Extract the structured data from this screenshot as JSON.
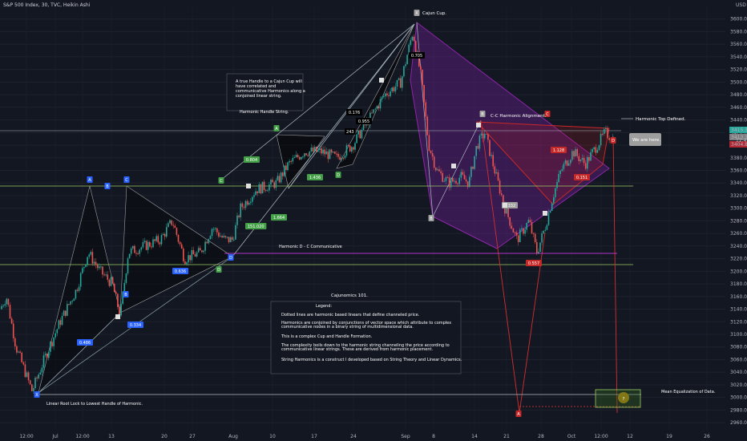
{
  "header": {
    "title": "S&P 500 Index, 30, TVC, Heikin Ashi"
  },
  "price_axis": {
    "currency": "USD",
    "labels": [
      "3600.0",
      "3580.0",
      "3560.0",
      "3540.0",
      "3520.0",
      "3500.0",
      "3480.0",
      "3460.0",
      "3440.0",
      "3420.0",
      "3400.0",
      "3380.0",
      "3360.0",
      "3340.0",
      "3320.0",
      "3300.0",
      "3280.0",
      "3260.0",
      "3240.0",
      "3220.0",
      "3200.0",
      "3180.0",
      "3160.0",
      "3140.0",
      "3120.0",
      "3100.0",
      "3080.0",
      "3060.0",
      "3040.0",
      "3020.0",
      "3000.0",
      "2980.0",
      "2960.0"
    ],
    "badges": [
      {
        "text": "3415.3",
        "color": "#26a69a"
      },
      {
        "text": "3413.3",
        "color": "#7e7e7e"
      },
      {
        "text": "12:42",
        "color": "#7e7e7e"
      },
      {
        "text": "3404.8",
        "color": "#b22833"
      }
    ]
  },
  "time_axis": {
    "labels": [
      "12:00",
      "Jul",
      "12:00",
      "13",
      "20",
      "27",
      "Aug",
      "10",
      "17",
      "24",
      "Sep",
      "8",
      "14",
      "21",
      "28",
      "Oct",
      "12:00",
      "12",
      "19",
      "26"
    ]
  },
  "colors": {
    "bull": "#26a69a",
    "bear": "#ef5350",
    "purple": "#7b1fa2",
    "green_line": "#9ccc65",
    "white_line": "#b0bec5",
    "blue_label": "#2962ff",
    "green_label": "#43a047",
    "red_label": "#c62828"
  },
  "annotations": {
    "cajun_cup": "Cajun Cup.",
    "handle_note": [
      "A true Handle to a Cajun Cup will",
      "have correlated and",
      "communicative Harmonics along a",
      "conjoined linear string."
    ],
    "harmonic_handle": "Harmonic Handle String.",
    "cc_alignment": "C-C Harmonic Alignment.",
    "top_defined": "Harmonic Top Defined.",
    "we_are_here": "We are here.",
    "d_c_comm": "Harmonic D - C Communicative",
    "cajunomics": "Cajunomics 101.",
    "legend_title": "Legend:",
    "legend_lines": [
      "Dotted lines are harmonic based linears that define channeled price.",
      "Harmonics are conjoined by conjunctions of vector space which attribute to complex",
      "communicative nodes in a binary string of multidimensional data.",
      "This is a complex Cup and Handle Formation.",
      "The complexity boils down to the harmonic string channeling the price according to",
      "communicative linear strings. These are derived from harmonic placement.",
      "String Harmonics is a construct I developed based on String Theory and Linear Dynamics."
    ],
    "root_lock": "Linear Root Lock to Lowest Handle of Harmonic.",
    "mean_eq": "Mean Equalization of Data.",
    "question": "?"
  },
  "labels": {
    "letters": [
      "X",
      "A",
      "B",
      "C",
      "D"
    ],
    "ratios": [
      "0.486",
      "0.334",
      "0.636",
      "0.804",
      "1.436",
      "1.664",
      "151.020",
      "0.176",
      "243",
      "0.955",
      "0.705",
      "0.557",
      "1.128",
      "0.151",
      "0.332"
    ]
  },
  "chart_data": {
    "type": "candlestick",
    "title": "S&P 500 Index, 30, TVC, Heikin Ashi",
    "ylim": [
      2950,
      3620
    ],
    "y_ticks": [
      3600,
      3580,
      3560,
      3540,
      3520,
      3500,
      3480,
      3460,
      3440,
      3420,
      3400,
      3380,
      3360,
      3340,
      3320,
      3300,
      3280,
      3260,
      3240,
      3220,
      3200,
      3180,
      3160,
      3140,
      3120,
      3100,
      3080,
      3060,
      3040,
      3020,
      3000,
      2980,
      2960
    ],
    "path": [
      [
        0,
        3140
      ],
      [
        8,
        3160
      ],
      [
        20,
        3080
      ],
      [
        40,
        3010
      ],
      [
        55,
        3060
      ],
      [
        75,
        3120
      ],
      [
        95,
        3170
      ],
      [
        110,
        3230
      ],
      [
        125,
        3200
      ],
      [
        140,
        3180
      ],
      [
        150,
        3130
      ],
      [
        160,
        3230
      ],
      [
        180,
        3240
      ],
      [
        200,
        3250
      ],
      [
        215,
        3280
      ],
      [
        230,
        3220
      ],
      [
        250,
        3230
      ],
      [
        265,
        3270
      ],
      [
        280,
        3250
      ],
      [
        290,
        3250
      ],
      [
        300,
        3300
      ],
      [
        320,
        3330
      ],
      [
        345,
        3340
      ],
      [
        360,
        3370
      ],
      [
        380,
        3390
      ],
      [
        400,
        3390
      ],
      [
        420,
        3380
      ],
      [
        440,
        3400
      ],
      [
        460,
        3440
      ],
      [
        480,
        3480
      ],
      [
        500,
        3500
      ],
      [
        515,
        3580
      ],
      [
        525,
        3510
      ],
      [
        535,
        3400
      ],
      [
        545,
        3360
      ],
      [
        560,
        3340
      ],
      [
        575,
        3350
      ],
      [
        585,
        3340
      ],
      [
        595,
        3400
      ],
      [
        605,
        3420
      ],
      [
        615,
        3370
      ],
      [
        630,
        3300
      ],
      [
        645,
        3250
      ],
      [
        660,
        3280
      ],
      [
        670,
        3230
      ],
      [
        680,
        3270
      ],
      [
        690,
        3320
      ],
      [
        700,
        3360
      ],
      [
        715,
        3390
      ],
      [
        730,
        3370
      ],
      [
        745,
        3400
      ],
      [
        755,
        3420
      ],
      [
        765,
        3410
      ]
    ]
  }
}
